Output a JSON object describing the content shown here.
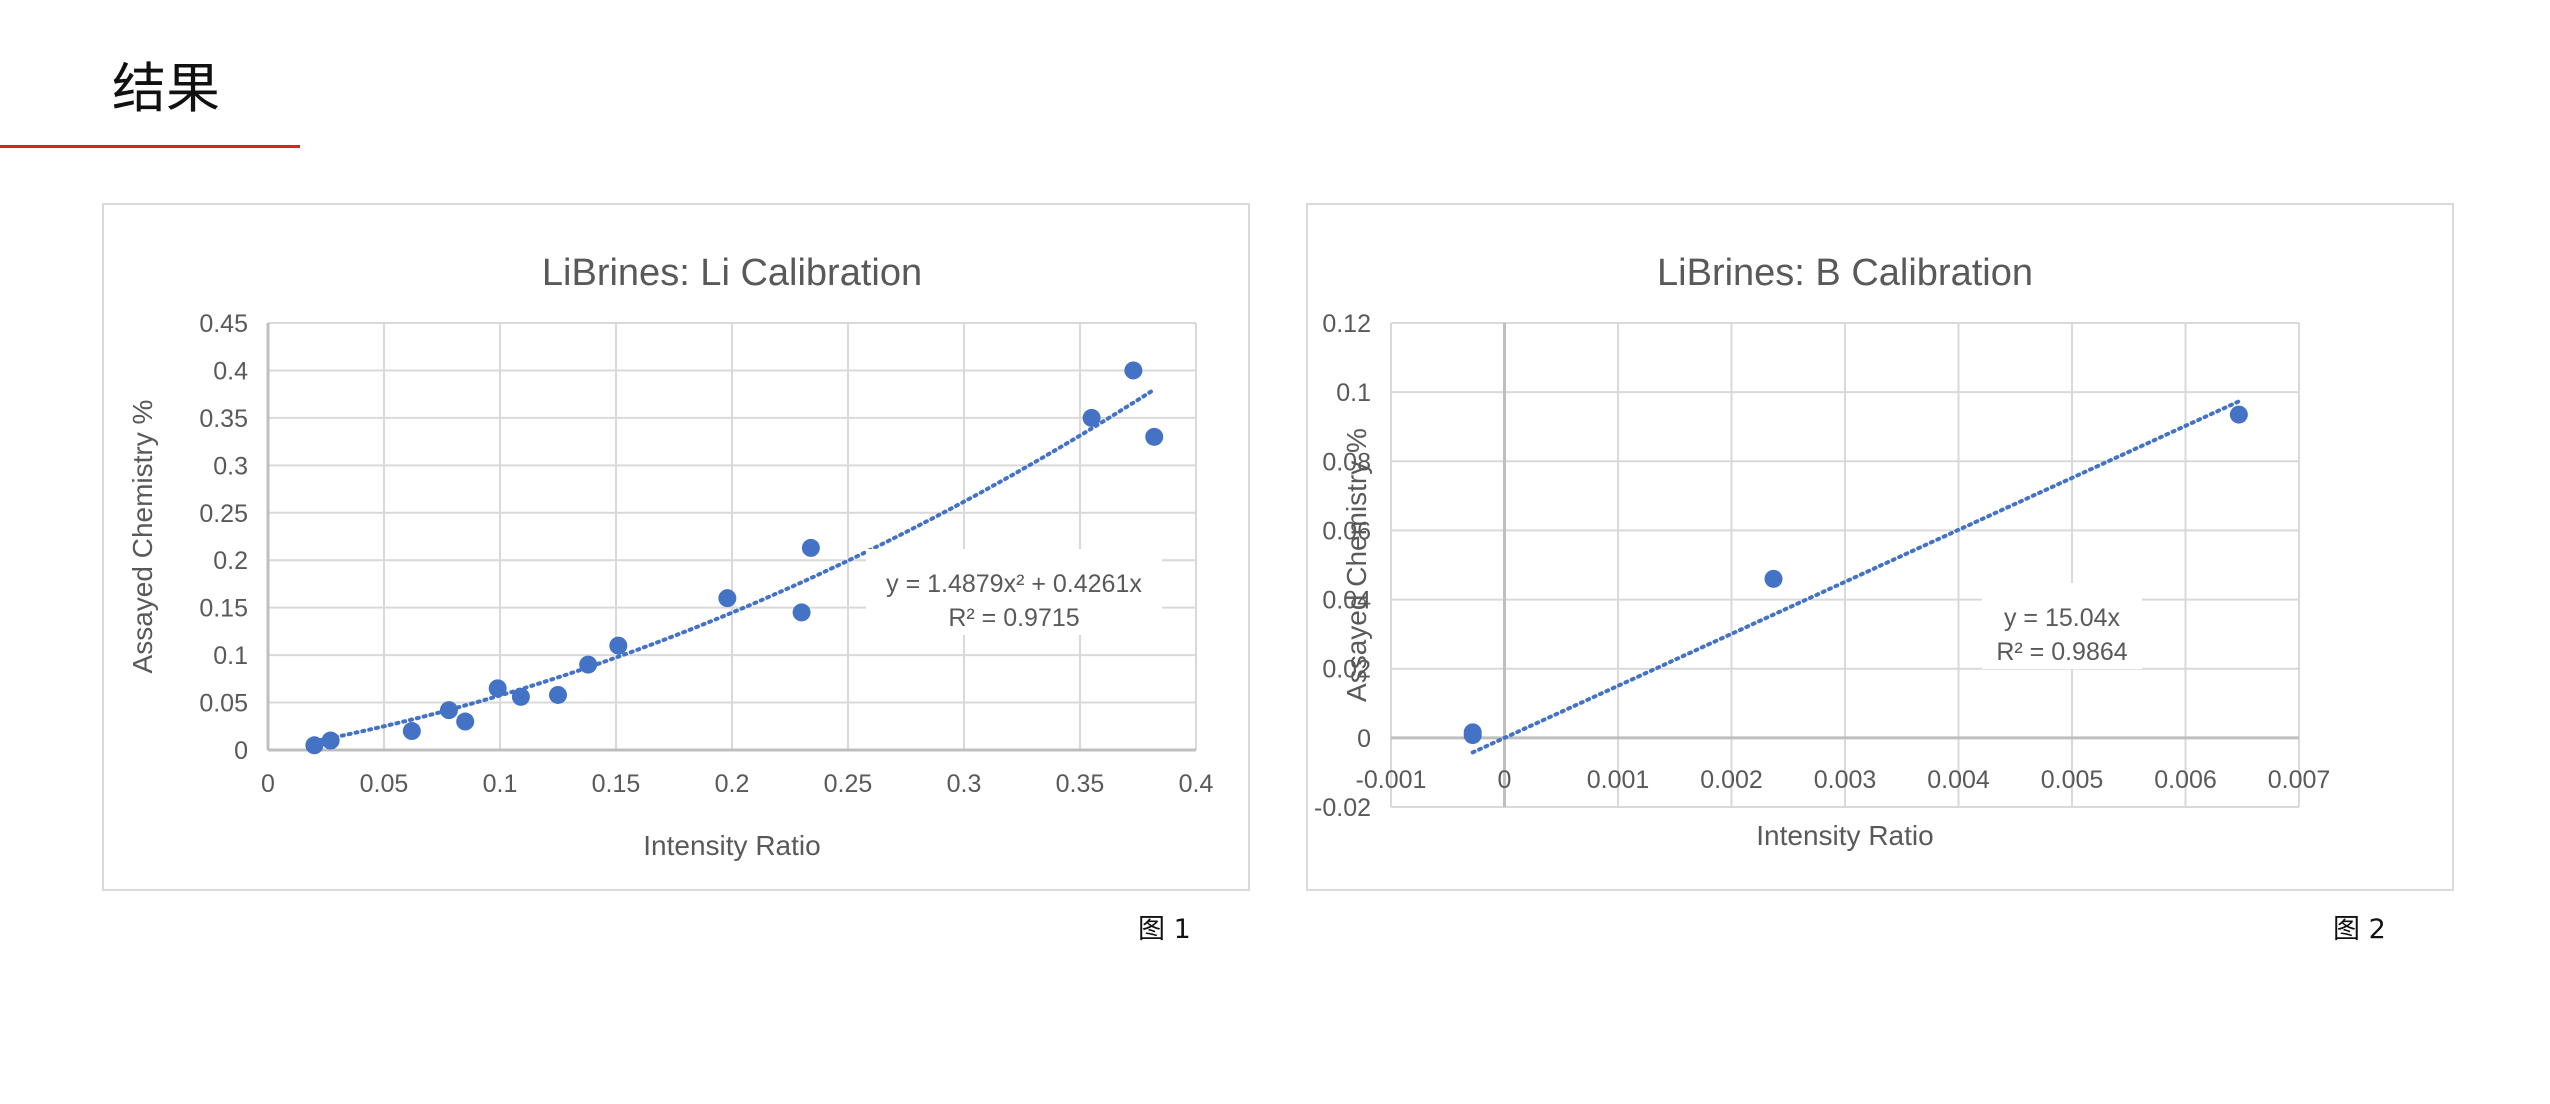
{
  "page": {
    "title": "结果",
    "accent_color": "#d9261c"
  },
  "figures": [
    {
      "label": "图 1"
    },
    {
      "label": "图 2"
    }
  ],
  "chart_data": [
    {
      "type": "scatter",
      "title": "LiBrines: Li Calibration",
      "xlabel": "Intensity Ratio",
      "ylabel": "Assayed Chemistry %",
      "xlim": [
        0,
        0.4
      ],
      "ylim": [
        0,
        0.45
      ],
      "x_ticks": [
        0,
        0.05,
        0.1,
        0.15,
        0.2,
        0.25,
        0.3,
        0.35,
        0.4
      ],
      "x_tick_labels": [
        "0",
        "0.05",
        "0.1",
        "0.15",
        "0.2",
        "0.25",
        "0.3",
        "0.35",
        "0.4"
      ],
      "y_ticks": [
        0,
        0.05,
        0.1,
        0.15,
        0.2,
        0.25,
        0.3,
        0.35,
        0.4,
        0.45
      ],
      "y_tick_labels": [
        "0",
        "0.05",
        "0.1",
        "0.15",
        "0.2",
        "0.25",
        "0.3",
        "0.35",
        "0.4",
        "0.45"
      ],
      "grid": true,
      "marker_color": "#4472c4",
      "series": [
        {
          "name": "Li",
          "points": [
            [
              0.02,
              0.005
            ],
            [
              0.027,
              0.01
            ],
            [
              0.062,
              0.02
            ],
            [
              0.078,
              0.042
            ],
            [
              0.085,
              0.03
            ],
            [
              0.099,
              0.065
            ],
            [
              0.109,
              0.056
            ],
            [
              0.125,
              0.058
            ],
            [
              0.138,
              0.09
            ],
            [
              0.151,
              0.11
            ],
            [
              0.198,
              0.16
            ],
            [
              0.23,
              0.145
            ],
            [
              0.234,
              0.213
            ],
            [
              0.355,
              0.35
            ],
            [
              0.373,
              0.4
            ],
            [
              0.382,
              0.33
            ]
          ]
        }
      ],
      "trendline": {
        "type": "polynomial",
        "coefficients": {
          "a2": 1.4879,
          "a1": 0.4261,
          "a0": 0
        },
        "x_range": [
          0.02,
          0.382
        ],
        "equation": "y = 1.4879x² + 0.4261x",
        "r_squared": "R² = 0.9715"
      }
    },
    {
      "type": "scatter",
      "title": "LiBrines: B Calibration",
      "xlabel": "Intensity Ratio",
      "ylabel": "Assayed Chemistry %",
      "xlim": [
        -0.001,
        0.007
      ],
      "ylim": [
        -0.02,
        0.12
      ],
      "x_ticks": [
        -0.001,
        0,
        0.001,
        0.002,
        0.003,
        0.004,
        0.005,
        0.006,
        0.007
      ],
      "x_tick_labels": [
        "-0.001",
        "0",
        "0.001",
        "0.002",
        "0.003",
        "0.004",
        "0.005",
        "0.006",
        "0.007"
      ],
      "y_ticks": [
        -0.02,
        0,
        0.02,
        0.04,
        0.06,
        0.08,
        0.1,
        0.12
      ],
      "y_tick_labels": [
        "-0.02",
        "0",
        "0.02",
        "0.04",
        "0.06",
        "0.08",
        "0.1",
        "0.12"
      ],
      "grid": true,
      "marker_color": "#4472c4",
      "series": [
        {
          "name": "B",
          "points": [
            [
              -0.00028,
              0.0008
            ],
            [
              -0.00028,
              0.0016
            ],
            [
              0.00237,
              0.046
            ],
            [
              0.00647,
              0.0935
            ]
          ]
        }
      ],
      "trendline": {
        "type": "linear",
        "coefficients": {
          "a1": 15.04,
          "a0": 0
        },
        "x_range": [
          -0.00028,
          0.00647
        ],
        "equation": "y = 15.04x",
        "r_squared": "R² = 0.9864"
      }
    }
  ]
}
